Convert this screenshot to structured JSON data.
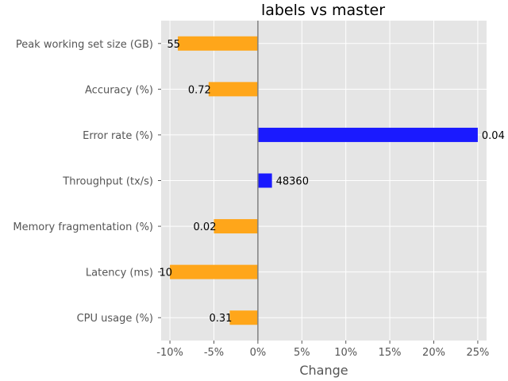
{
  "chart_data": {
    "type": "bar",
    "orientation": "horizontal",
    "title": "labels vs master",
    "xlabel": "Change",
    "ylabel": "",
    "xlim": [
      -11,
      26
    ],
    "x_ticks": [
      -10,
      -5,
      0,
      5,
      10,
      15,
      20,
      25
    ],
    "x_tick_labels": [
      "-10%",
      "-5%",
      "0%",
      "5%",
      "10%",
      "15%",
      "20%",
      "25%"
    ],
    "grid": true,
    "zero_line": true,
    "colors": {
      "increase": "#1a1aff",
      "decrease": "#ffa61a",
      "background": "#e5e5e5",
      "grid": "#ffffff",
      "zero_line": "#808080"
    },
    "categories": [
      "Peak working set size (GB)",
      "Accuracy (%)",
      "Error rate (%)",
      "Throughput (tx/s)",
      "Memory fragmentation (%)",
      "Latency (ms)",
      "CPU usage (%)"
    ],
    "values": [
      -9.1,
      -5.6,
      25.0,
      1.6,
      -5.0,
      -10.0,
      -3.2
    ],
    "data_labels": [
      "55",
      "0.72",
      "0.04",
      "48360",
      "0.02",
      "10",
      "0.31"
    ]
  }
}
